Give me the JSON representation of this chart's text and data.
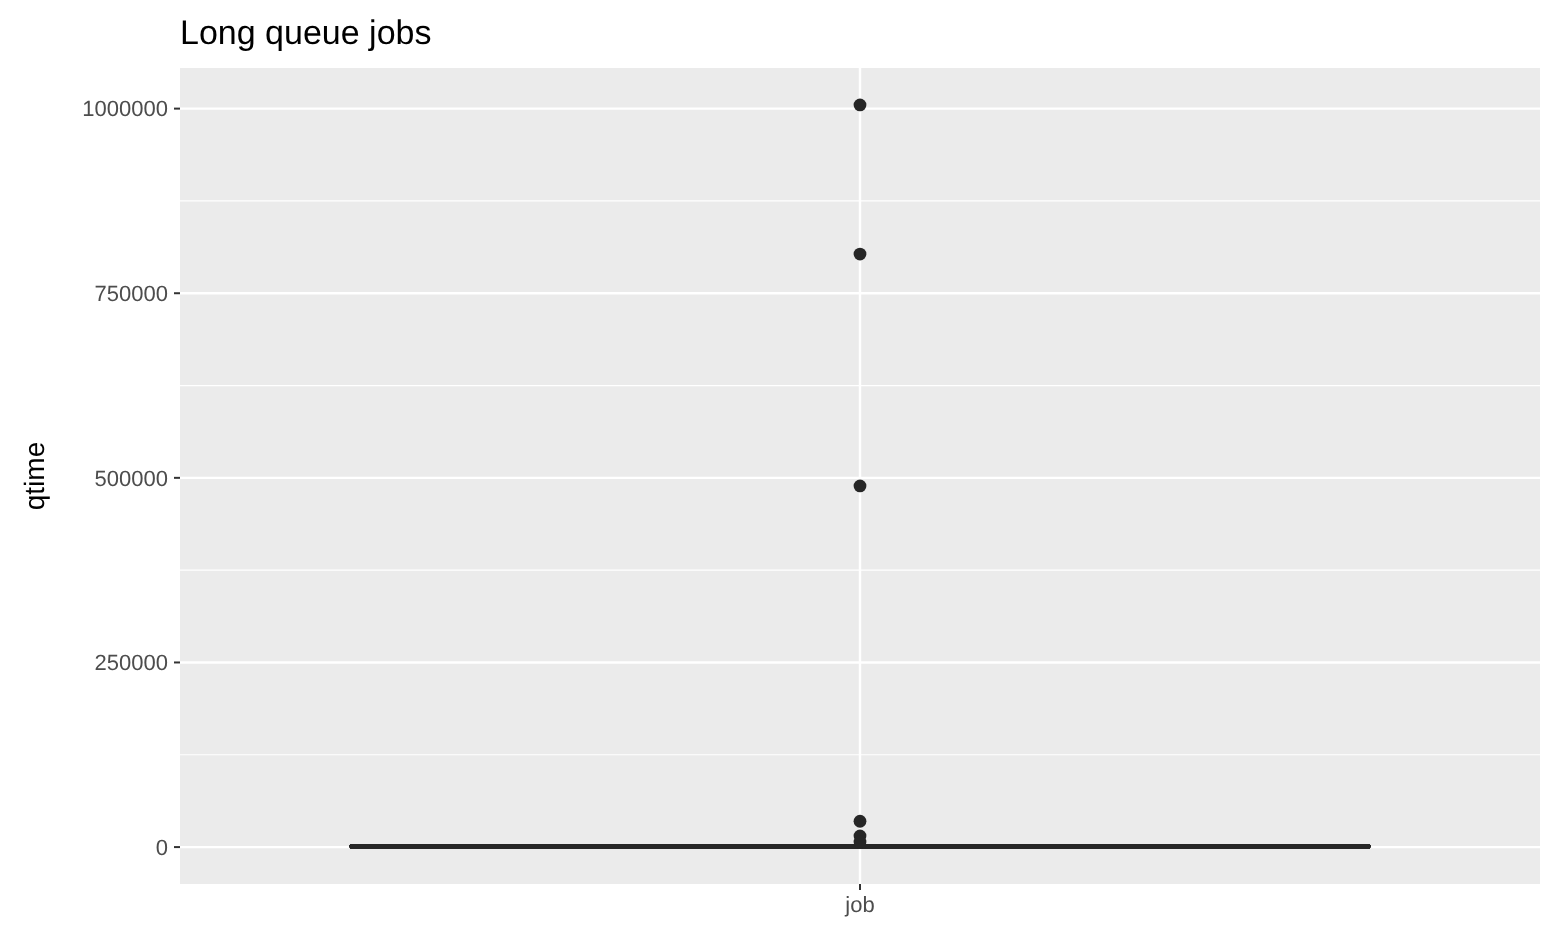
{
  "chart_data": {
    "type": "box",
    "title": "Long queue jobs",
    "ylabel": "qtime",
    "categories": [
      "job"
    ],
    "boxes": [
      {
        "low": 100,
        "q1": 400,
        "median": 800,
        "q3": 1500,
        "high": 3000,
        "outliers": [
          1005000,
          803000,
          489000,
          35000,
          15000,
          7000
        ]
      }
    ],
    "color": "#262626",
    "ylim": [
      -50000,
      1055000
    ],
    "yticks": [
      0,
      250000,
      500000,
      750000,
      1000000
    ],
    "grid": true
  }
}
